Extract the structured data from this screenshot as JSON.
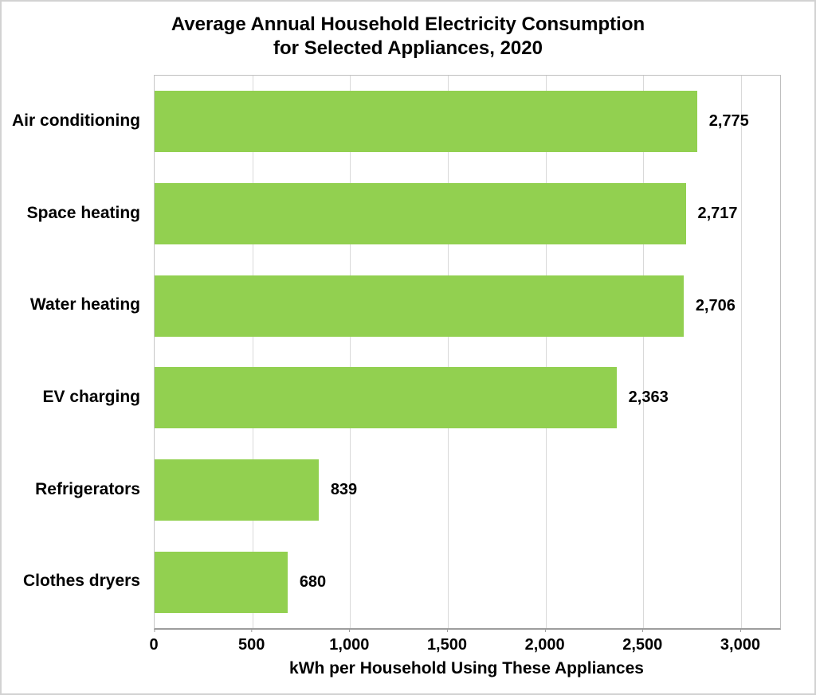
{
  "chart_data": {
    "type": "bar",
    "orientation": "horizontal",
    "title_lines": [
      "Average Annual Household Electricity Consumption",
      "for Selected Appliances, 2020"
    ],
    "categories": [
      "Air conditioning",
      "Space heating",
      "Water heating",
      "EV charging",
      "Refrigerators",
      "Clothes dryers"
    ],
    "values": [
      2775,
      2717,
      2706,
      2363,
      839,
      680
    ],
    "value_labels": [
      "2,775",
      "2,717",
      "2,706",
      "2,363",
      "839",
      "680"
    ],
    "xlabel": "kWh per Household Using These Appliances",
    "ylabel": "",
    "xlim": [
      0,
      3200
    ],
    "xticks": [
      0,
      500,
      1000,
      1500,
      2000,
      2500,
      3000
    ],
    "xtick_labels": [
      "0",
      "500",
      "1,000",
      "1,500",
      "2,000",
      "2,500",
      "3,000"
    ],
    "grid": true,
    "legend": false,
    "bar_color": "#92d050",
    "gridline_color": "#d9d9d9",
    "axis_color": "#9d9d9d",
    "text_color": "#000000"
  }
}
